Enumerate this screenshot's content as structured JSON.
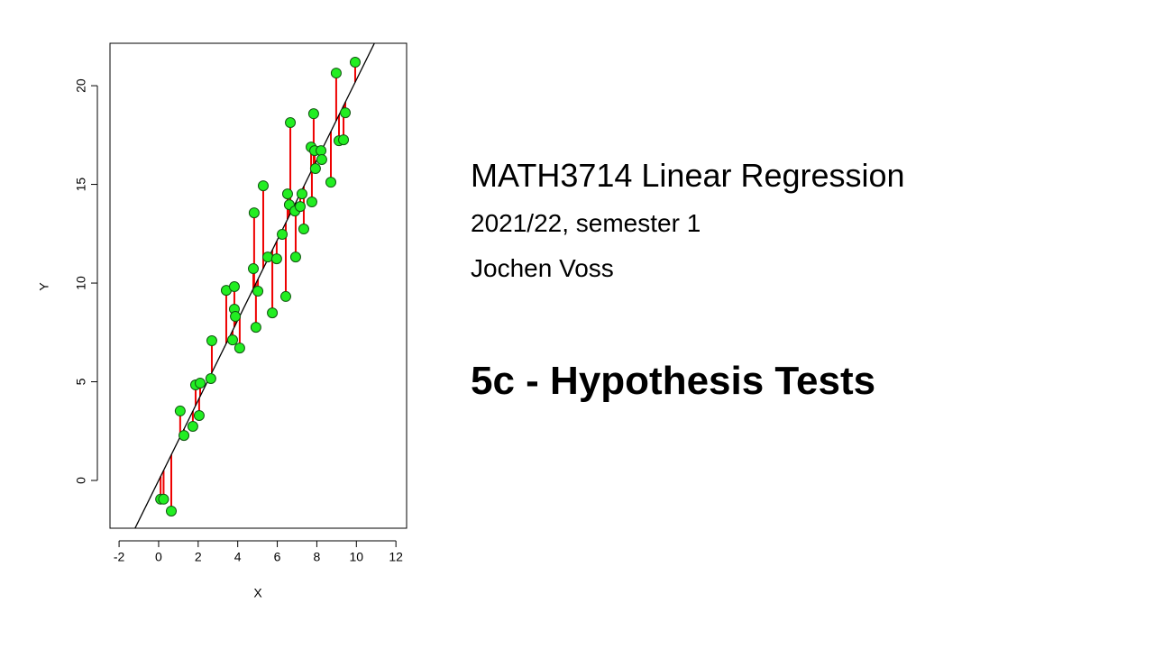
{
  "slide": {
    "title": "MATH3714 Linear Regression",
    "term": "2021/22, semester 1",
    "author": "Jochen Voss",
    "section": "5c - Hypothesis Tests"
  },
  "chart_data": {
    "type": "scatter",
    "x_label": "X",
    "y_label": "Y",
    "x": [
      0.1,
      0.25,
      0.64,
      1.09,
      1.28,
      1.73,
      1.87,
      2.05,
      2.1,
      2.64,
      2.69,
      3.42,
      3.74,
      3.83,
      3.83,
      3.88,
      4.1,
      4.79,
      4.83,
      4.92,
      5.02,
      5.29,
      5.52,
      5.75,
      5.97,
      6.25,
      6.43,
      6.52,
      6.61,
      6.66,
      6.89,
      6.93,
      7.16,
      7.25,
      7.34,
      7.71,
      7.75,
      7.84,
      7.89,
      7.93,
      8.21,
      8.25,
      8.71,
      8.98,
      9.12,
      9.35,
      9.44,
      9.94
    ],
    "y": [
      -0.95,
      -0.95,
      -1.55,
      3.52,
      2.28,
      2.74,
      4.84,
      3.29,
      4.93,
      5.16,
      7.08,
      9.63,
      7.12,
      9.82,
      8.68,
      8.31,
      6.71,
      10.73,
      13.56,
      7.76,
      9.59,
      14.93,
      11.32,
      8.49,
      11.23,
      12.47,
      9.32,
      14.52,
      13.97,
      18.13,
      13.65,
      11.32,
      13.88,
      14.52,
      12.74,
      16.89,
      14.11,
      18.58,
      16.71,
      15.8,
      16.71,
      16.26,
      15.11,
      20.64,
      17.21,
      17.26,
      18.63,
      21.19
    ],
    "regression": {
      "slope": 2.03,
      "intercept": 0,
      "color": "#000000"
    },
    "point_color": "#22ee22",
    "residual_color": "#ee0000",
    "xlim": [
      -2.46,
      12.54
    ],
    "ylim": [
      -2.42,
      22.15
    ],
    "xticks": [
      -2,
      0,
      2,
      4,
      6,
      8,
      10,
      12
    ],
    "yticks": [
      0,
      5,
      10,
      15,
      20
    ]
  }
}
